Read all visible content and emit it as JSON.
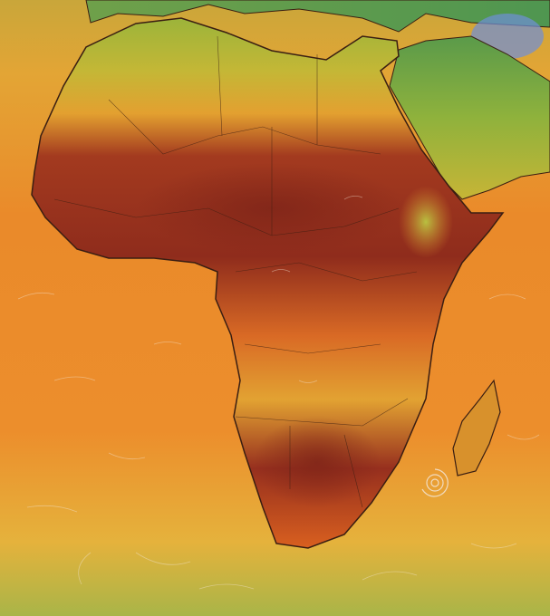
{
  "map": {
    "type": "temperature-heatmap",
    "region": "Africa",
    "colors": {
      "ocean_warm": "#ea8a2a",
      "ocean_cool": "#e3b13a",
      "land_hot": "#8e2a1c",
      "land_warm": "#c8441f",
      "land_mild": "#e8a330",
      "land_cool": "#9bb53a",
      "land_cold": "#5a9a4a",
      "snow_high": "#6f8fd8",
      "border": "#3a1e12",
      "wind_streaks": "#f3e6d8"
    },
    "features": [
      "africa",
      "arabian-peninsula",
      "europe",
      "madagascar",
      "cyclone-swirl",
      "wind-streaks"
    ]
  }
}
